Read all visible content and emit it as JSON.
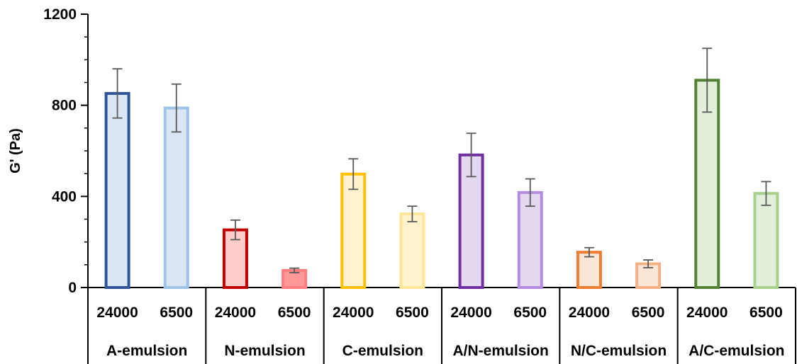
{
  "chart_data": {
    "type": "bar",
    "title": "",
    "ylabel": "G' (Pa)",
    "ylim": [
      0,
      1200
    ],
    "yticks": [
      "0",
      "400",
      "800",
      "1200"
    ],
    "minor_tick_step": 100,
    "grid": false,
    "groups": [
      {
        "name": "A-emulsion",
        "bars": [
          {
            "label": "24000",
            "value": 852,
            "error": 108,
            "stroke": "#2F5597",
            "fill": "#DAE6F4"
          },
          {
            "label": "6500",
            "value": 788,
            "error": 105,
            "stroke": "#9DC3E6",
            "fill": "#DAE6F4"
          }
        ]
      },
      {
        "name": "N-emulsion",
        "bars": [
          {
            "label": "24000",
            "value": 253,
            "error": 43,
            "stroke": "#C00000",
            "fill": "#FFCCCC"
          },
          {
            "label": "6500",
            "value": 75,
            "error": 10,
            "stroke": "#FF7C80",
            "fill": "#FF9999"
          }
        ]
      },
      {
        "name": "C-emulsion",
        "bars": [
          {
            "label": "24000",
            "value": 498,
            "error": 67,
            "stroke": "#FFC000",
            "fill": "#FFF2CC"
          },
          {
            "label": "6500",
            "value": 323,
            "error": 34,
            "stroke": "#FFE699",
            "fill": "#FFF2CC"
          }
        ]
      },
      {
        "name": "A/N-emulsion",
        "bars": [
          {
            "label": "24000",
            "value": 582,
            "error": 95,
            "stroke": "#7030A0",
            "fill": "#E4D8F0"
          },
          {
            "label": "6500",
            "value": 417,
            "error": 60,
            "stroke": "#B38CDE",
            "fill": "#E4D8F0"
          }
        ]
      },
      {
        "name": "N/C-emulsion",
        "bars": [
          {
            "label": "24000",
            "value": 155,
            "error": 20,
            "stroke": "#ED7D31",
            "fill": "#FBE5D6"
          },
          {
            "label": "6500",
            "value": 104,
            "error": 17,
            "stroke": "#F4B183",
            "fill": "#FBE5D6"
          }
        ]
      },
      {
        "name": "A/C-emulsion",
        "bars": [
          {
            "label": "24000",
            "value": 910,
            "error": 140,
            "stroke": "#548235",
            "fill": "#E2EFDA"
          },
          {
            "label": "6500",
            "value": 413,
            "error": 52,
            "stroke": "#A9D18E",
            "fill": "#E2EFDA"
          }
        ]
      }
    ]
  }
}
